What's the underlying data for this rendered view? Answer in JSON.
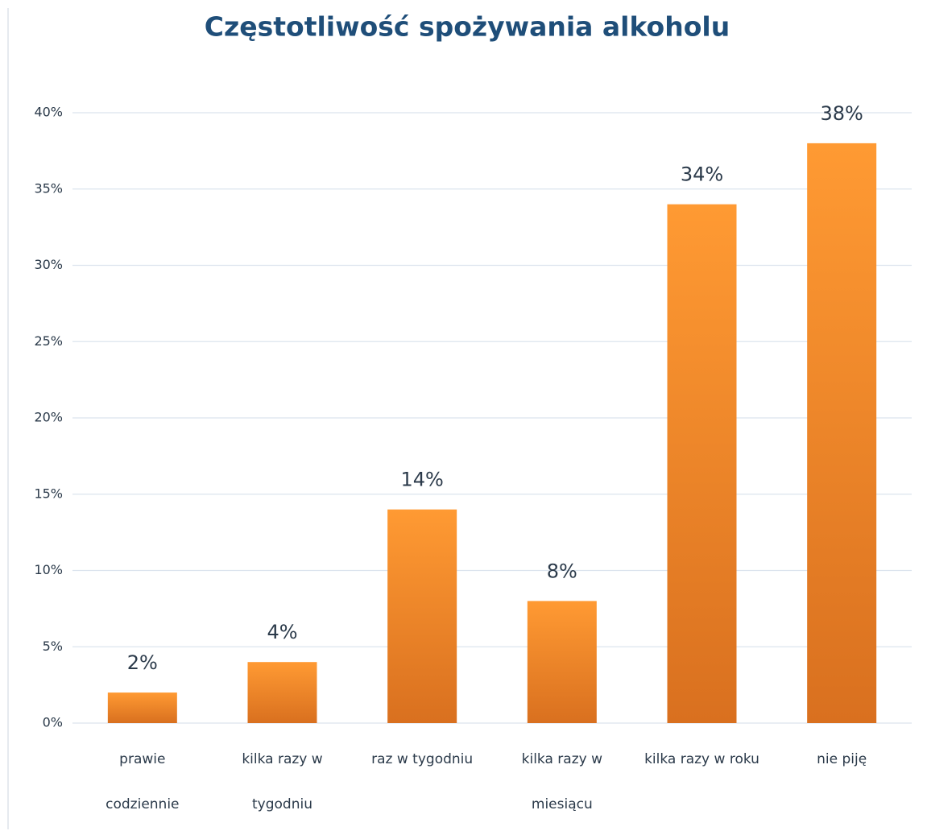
{
  "chart_data": {
    "type": "bar",
    "title": "Częstotliwość spożywania alkoholu",
    "categories": [
      "prawie codziennie",
      "kilka razy w tygodniu",
      "raz w tygodniu",
      "kilka razy w miesiącu",
      "kilka razy w roku",
      "nie piję"
    ],
    "values": [
      2,
      4,
      14,
      8,
      34,
      38
    ],
    "value_labels": [
      "2%",
      "4%",
      "14%",
      "8%",
      "34%",
      "38%"
    ],
    "color": "#f08a24",
    "ylim": [
      0,
      40
    ],
    "yticks": [
      {
        "value": 0,
        "label": "0%"
      },
      {
        "value": 5,
        "label": "5%"
      },
      {
        "value": 10,
        "label": "10%"
      },
      {
        "value": 15,
        "label": "15%"
      },
      {
        "value": 20,
        "label": "20%"
      },
      {
        "value": 25,
        "label": "25%"
      },
      {
        "value": 30,
        "label": "30%"
      },
      {
        "value": 35,
        "label": "35%"
      },
      {
        "value": 40,
        "label": "40%"
      }
    ],
    "grid": true
  }
}
